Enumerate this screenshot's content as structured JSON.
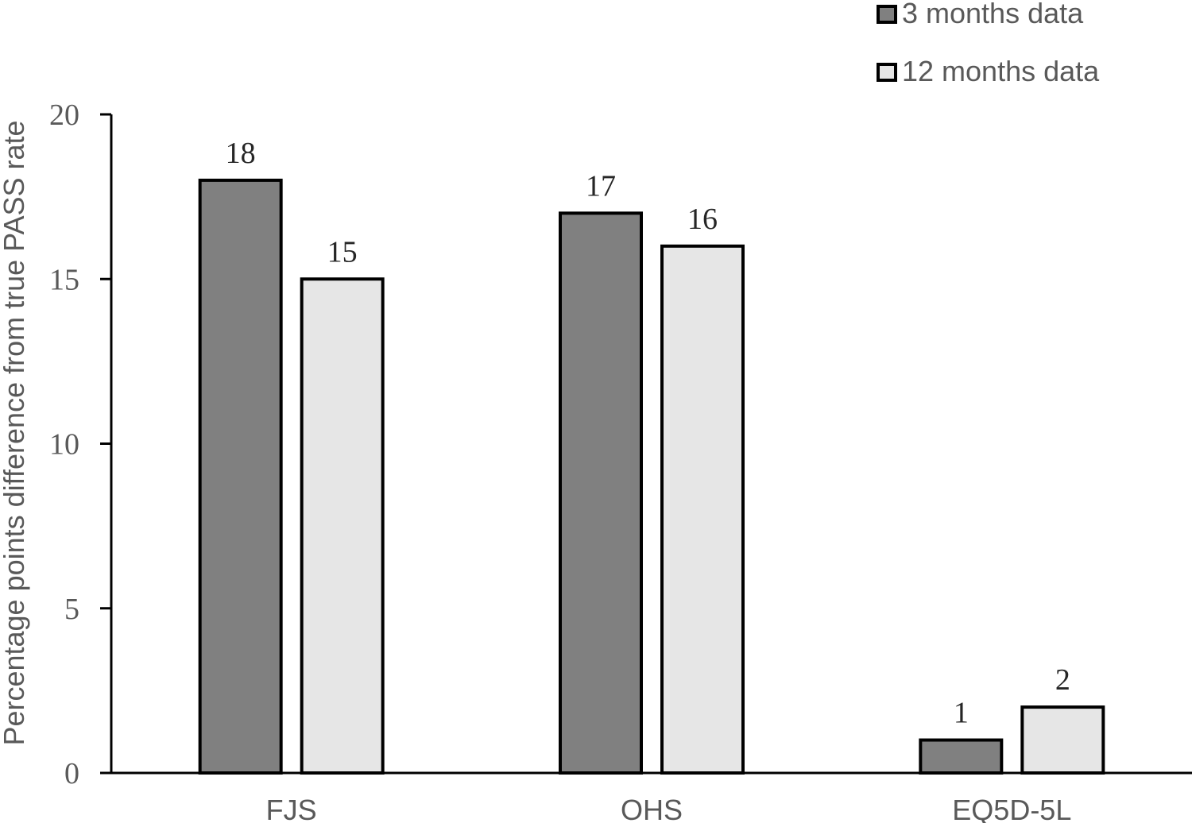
{
  "chart_data": {
    "type": "bar",
    "ylabel": "Percentage points difference from true PASS rate",
    "xlabel": "",
    "categories": [
      "FJS",
      "OHS",
      "EQ5D-5L"
    ],
    "yticks": [
      "0",
      "5",
      "10",
      "15",
      "20"
    ],
    "ylim": [
      0,
      20
    ],
    "grid": false,
    "legend_position": "top-right",
    "series": [
      {
        "name": "3 months data",
        "values": [
          18,
          17,
          1
        ],
        "labels": [
          "18",
          "17",
          "1"
        ],
        "color": "#808080"
      },
      {
        "name": "12 months data",
        "values": [
          15,
          16,
          2
        ],
        "labels": [
          "15",
          "16",
          "2"
        ],
        "color": "#e6e6e6"
      }
    ]
  }
}
